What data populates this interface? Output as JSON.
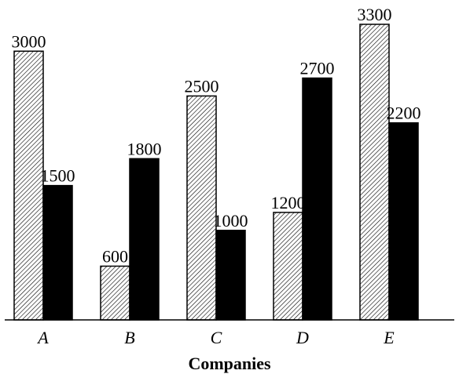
{
  "chart_data": {
    "type": "bar",
    "categories": [
      "A",
      "B",
      "C",
      "D",
      "E"
    ],
    "series": [
      {
        "values": [
          3000,
          600,
          2500,
          1200,
          3300
        ],
        "pattern": "diagonal-hatch",
        "fill_color": "#ffffff",
        "stroke_color": "#000000"
      },
      {
        "values": [
          1500,
          1800,
          1000,
          2700,
          2200
        ],
        "pattern": "solid",
        "fill_color": "#000000",
        "stroke_color": "#000000"
      }
    ],
    "title": "",
    "xlabel": "Companies",
    "ylabel": "",
    "ylim": [
      0,
      3300
    ],
    "grid": false,
    "legend": "none"
  }
}
